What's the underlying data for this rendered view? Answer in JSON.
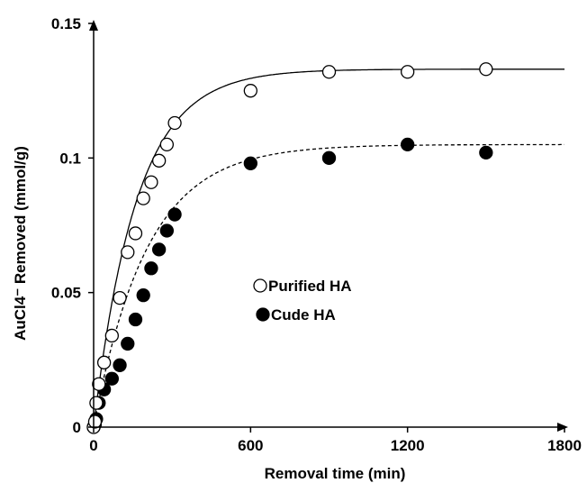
{
  "chart_data": {
    "type": "scatter",
    "xlabel": "Removal time (min)",
    "ylabel": "AuCl4⁻ Removed (mmol/g)",
    "xlim": [
      0,
      1800
    ],
    "ylim": [
      0,
      0.15
    ],
    "x_ticks": [
      0,
      600,
      1200,
      1800
    ],
    "x_tick_labels": [
      "0",
      "600",
      "1200",
      "1800"
    ],
    "y_ticks": [
      0,
      0.05,
      0.1,
      0.15
    ],
    "y_tick_labels": [
      "0",
      "0.05",
      "0.1",
      "0.15"
    ],
    "grid": false,
    "legend_position": "center",
    "series": [
      {
        "name": "Purified HA",
        "marker": "open-circle",
        "fit_line": "solid",
        "fit_plateau": 0.133,
        "fit_rate": 0.0061,
        "points": [
          [
            0,
            0.0
          ],
          [
            5,
            0.002
          ],
          [
            10,
            0.009
          ],
          [
            20,
            0.016
          ],
          [
            40,
            0.024
          ],
          [
            70,
            0.034
          ],
          [
            100,
            0.048
          ],
          [
            130,
            0.065
          ],
          [
            160,
            0.072
          ],
          [
            190,
            0.085
          ],
          [
            220,
            0.091
          ],
          [
            250,
            0.099
          ],
          [
            280,
            0.105
          ],
          [
            310,
            0.113
          ],
          [
            600,
            0.125
          ],
          [
            900,
            0.132
          ],
          [
            1200,
            0.132
          ],
          [
            1500,
            0.133
          ]
        ]
      },
      {
        "name": "Cude HA",
        "marker": "filled-circle",
        "fit_line": "dashed",
        "fit_plateau": 0.105,
        "fit_rate": 0.0049,
        "points": [
          [
            0,
            0.0
          ],
          [
            5,
            0.001
          ],
          [
            10,
            0.003
          ],
          [
            20,
            0.009
          ],
          [
            40,
            0.014
          ],
          [
            70,
            0.018
          ],
          [
            100,
            0.023
          ],
          [
            130,
            0.031
          ],
          [
            160,
            0.04
          ],
          [
            190,
            0.049
          ],
          [
            220,
            0.059
          ],
          [
            250,
            0.066
          ],
          [
            280,
            0.073
          ],
          [
            310,
            0.079
          ],
          [
            600,
            0.098
          ],
          [
            900,
            0.1
          ],
          [
            1200,
            0.105
          ],
          [
            1500,
            0.102
          ]
        ]
      }
    ]
  }
}
